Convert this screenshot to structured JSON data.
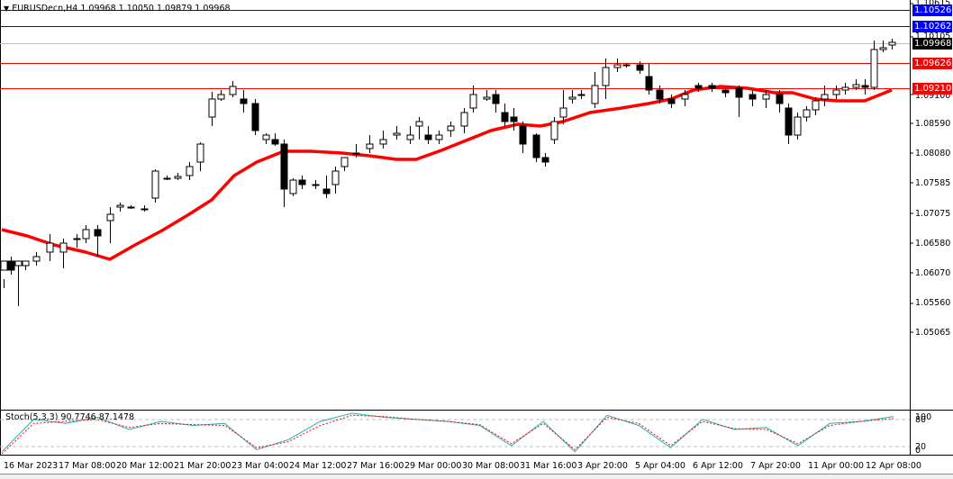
{
  "header": {
    "dropdown_icon": "triangle-down-icon",
    "title": "EURUSDecn,H4  1.09968 1.10050 1.09879 1.09968"
  },
  "price_axis": {
    "ticks": [
      "1.10615",
      "1.10105",
      "1.09100",
      "1.08590",
      "1.08080",
      "1.07585",
      "1.07075",
      "1.06580",
      "1.06070",
      "1.05560",
      "1.05065"
    ]
  },
  "price_tags": [
    {
      "label": "1.10526",
      "color": "#0000ff",
      "type": "resistance-line"
    },
    {
      "label": "1.10262",
      "color": "#0000ff",
      "type": "resistance-line"
    },
    {
      "label": "1.09968",
      "color": "#000000",
      "type": "current-price"
    },
    {
      "label": "1.09626",
      "color": "#ff0000",
      "type": "level-line"
    },
    {
      "label": "1.09210",
      "color": "#ff0000",
      "type": "level-line"
    }
  ],
  "stoch": {
    "title": "Stoch(5,3,3) 90.7746 87.1478",
    "levels": [
      "100",
      "80",
      "20",
      "0"
    ],
    "main_color": "#20b2aa",
    "signal_color": "#ff0000"
  },
  "time_axis": {
    "labels": [
      "16 Mar 2023",
      "17 Mar 08:00",
      "20 Mar 12:00",
      "21 Mar 20:00",
      "23 Mar 04:00",
      "24 Mar 12:00",
      "27 Mar 16:00",
      "29 Mar 00:00",
      "30 Mar 08:00",
      "31 Mar 16:00",
      "3 Apr 20:00",
      "5 Apr 04:00",
      "6 Apr 12:00",
      "7 Apr 20:00",
      "11 Apr 00:00",
      "12 Apr 08:00"
    ]
  },
  "chart_data": {
    "type": "candlestick",
    "title": "EURUSDecn,H4",
    "ohlc_header": {
      "open": 1.09968,
      "high": 1.1005,
      "low": 1.09879,
      "close": 1.09968
    },
    "ylim": [
      1.05065,
      1.10615
    ],
    "xlabel": "",
    "ylabel": "",
    "categories": [
      "16 Mar 2023",
      "17 Mar 08:00",
      "20 Mar 12:00",
      "21 Mar 20:00",
      "23 Mar 04:00",
      "24 Mar 12:00",
      "27 Mar 16:00",
      "29 Mar 00:00",
      "30 Mar 08:00",
      "31 Mar 16:00",
      "3 Apr 20:00",
      "5 Apr 04:00",
      "6 Apr 12:00",
      "7 Apr 20:00",
      "11 Apr 00:00",
      "12 Apr 08:00"
    ],
    "horizontal_lines": [
      {
        "value": 1.10526,
        "color": "#0000ff"
      },
      {
        "value": 1.10262,
        "color": "#0000ff"
      },
      {
        "value": 1.09968,
        "color": "#c0c0c0"
      },
      {
        "value": 1.09626,
        "color": "#ff0000"
      },
      {
        "value": 1.0921,
        "color": "#ff0000"
      }
    ],
    "series": [
      {
        "name": "Moving Average",
        "color": "#ff0000",
        "values": [
          1.067,
          1.064,
          1.062,
          1.065,
          1.072,
          1.08,
          1.082,
          1.0815,
          1.081,
          1.082,
          1.086,
          1.088,
          1.087,
          1.089,
          1.091,
          1.092,
          1.0925,
          1.091,
          1.0905,
          1.092
        ]
      },
      {
        "name": "Stoch Main",
        "color": "#20b2aa",
        "values": [
          5,
          85,
          75,
          90,
          60,
          80,
          70,
          75,
          10,
          35,
          80,
          100,
          90,
          85,
          80,
          70,
          20,
          80,
          5,
          95,
          70,
          15,
          85,
          60,
          65,
          20,
          75,
          80,
          92
        ]
      },
      {
        "name": "Stoch Signal",
        "color": "#ff0000",
        "values": [
          0,
          75,
          80,
          85,
          65,
          75,
          72,
          70,
          15,
          30,
          70,
          95,
          92,
          85,
          80,
          72,
          25,
          75,
          10,
          90,
          75,
          20,
          80,
          62,
          60,
          25,
          70,
          80,
          87
        ]
      }
    ],
    "grid": false,
    "legend_position": "none"
  }
}
